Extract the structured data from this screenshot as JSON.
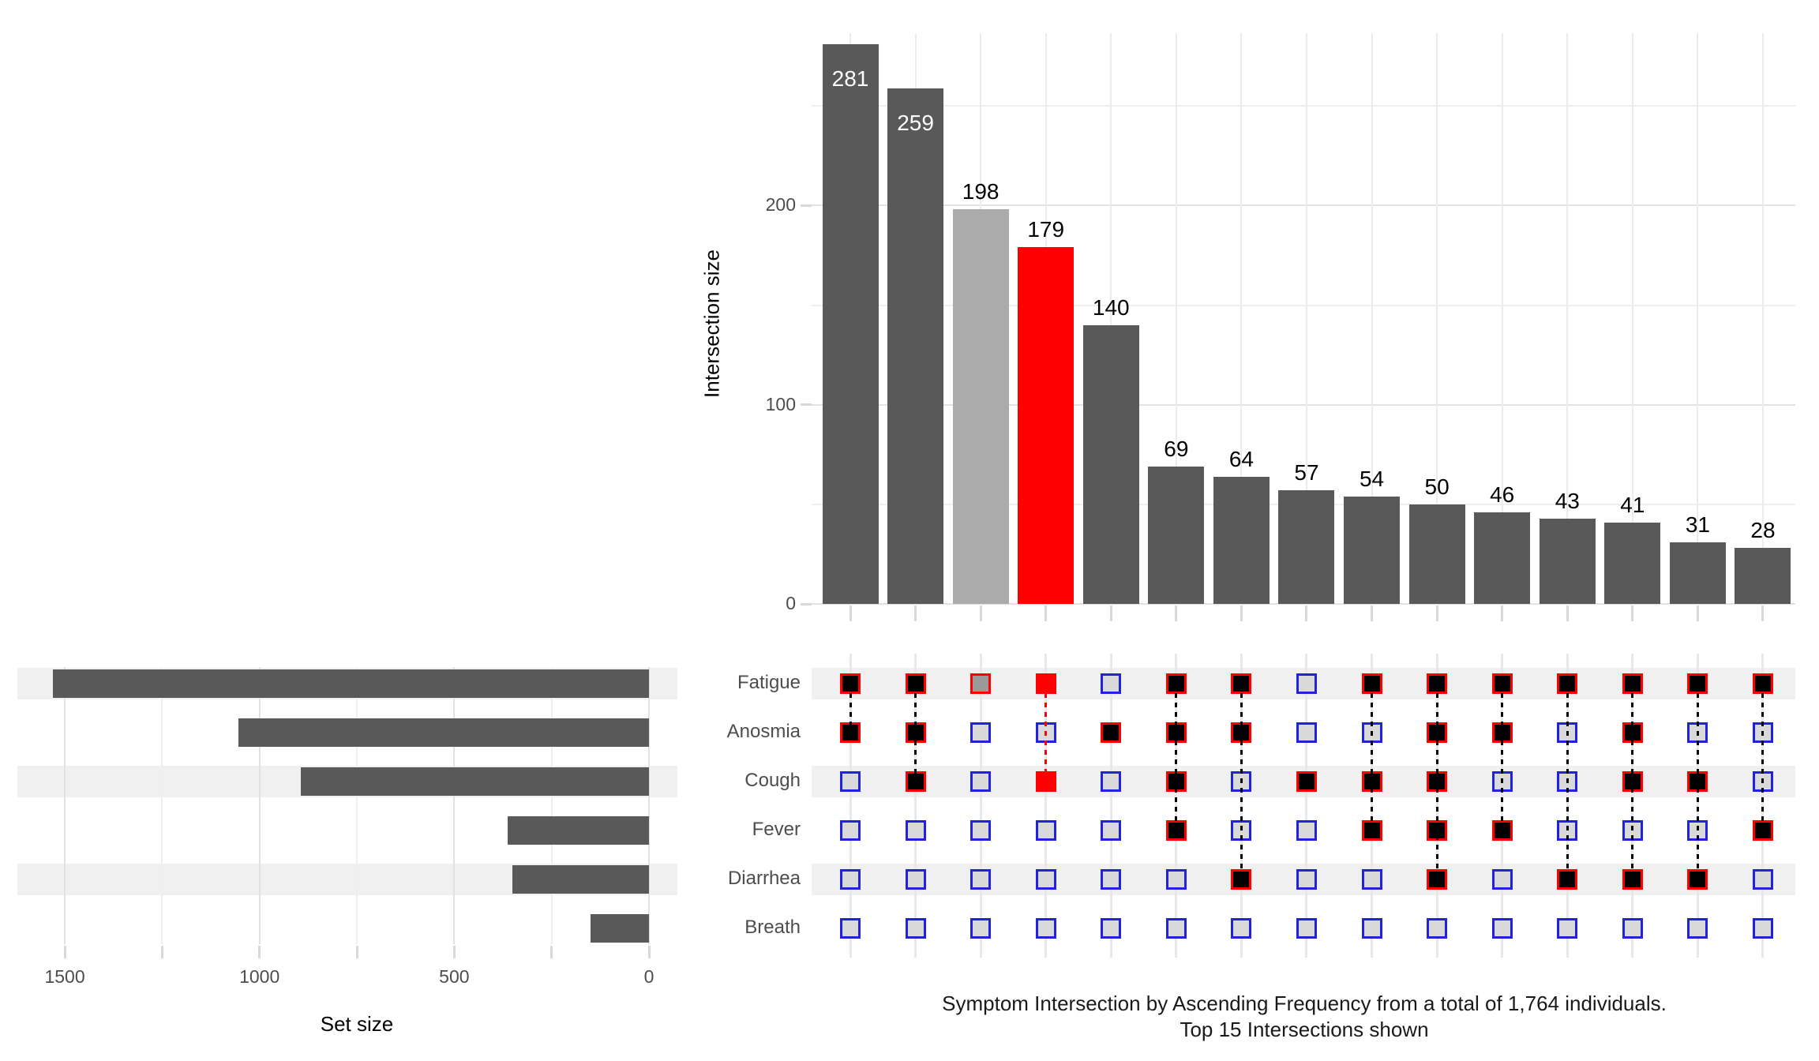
{
  "caption": {
    "line1": "Symptom Intersection by Ascending Frequency from a total of 1,764 individuals.",
    "line2": "Top 15 Intersections shown"
  },
  "colors": {
    "bar_dark": "#595959",
    "bar_grey": "#ababab",
    "bar_red": "#ff0000",
    "cell_inactive_fill": "#d9d9d9",
    "cell_inactive_border": "#2222dd",
    "cell_active_fill": "#000000",
    "cell_active_border": "#ff0000",
    "cell_grey_fill": "#9a9a9a",
    "stripe": "#f0f0f0",
    "grid_major": "#e2e2e2",
    "grid_minor": "#efefef",
    "grid_col": "#ececec",
    "rail": "#e8e8e8",
    "tick": "#d9d9d9",
    "axis_text": "#4d4d4d",
    "label_black": "#000000",
    "label_white": "#ffffff"
  },
  "chart_data": [
    {
      "id": "upset_intersections",
      "type": "bar",
      "ylabel": "Intersection size",
      "yticks": [
        0,
        100,
        200
      ],
      "yminor": [
        50,
        150,
        250
      ],
      "ylim": [
        0,
        290
      ],
      "grid": "on",
      "legend": "none",
      "matrix_rows": [
        "Fatigue",
        "Anosmia",
        "Cough",
        "Fever",
        "Diarrhea",
        "Breath"
      ],
      "bars": [
        {
          "size": 281,
          "sets": [
            "Fatigue",
            "Anosmia"
          ],
          "style": "dark",
          "label_inside": true
        },
        {
          "size": 259,
          "sets": [
            "Fatigue",
            "Anosmia",
            "Cough"
          ],
          "style": "dark",
          "label_inside": true
        },
        {
          "size": 198,
          "sets": [
            "Fatigue"
          ],
          "style": "grey",
          "label_inside": false
        },
        {
          "size": 179,
          "sets": [
            "Fatigue",
            "Cough"
          ],
          "style": "red",
          "label_inside": false
        },
        {
          "size": 140,
          "sets": [
            "Anosmia"
          ],
          "style": "dark",
          "label_inside": false
        },
        {
          "size": 69,
          "sets": [
            "Fatigue",
            "Anosmia",
            "Cough",
            "Fever"
          ],
          "style": "dark",
          "label_inside": false
        },
        {
          "size": 64,
          "sets": [
            "Fatigue",
            "Anosmia",
            "Diarrhea"
          ],
          "style": "dark",
          "label_inside": false
        },
        {
          "size": 57,
          "sets": [
            "Cough"
          ],
          "style": "dark",
          "label_inside": false
        },
        {
          "size": 54,
          "sets": [
            "Fatigue",
            "Cough",
            "Fever"
          ],
          "style": "dark",
          "label_inside": false
        },
        {
          "size": 50,
          "sets": [
            "Fatigue",
            "Anosmia",
            "Cough",
            "Fever",
            "Diarrhea"
          ],
          "style": "dark",
          "label_inside": false
        },
        {
          "size": 46,
          "sets": [
            "Fatigue",
            "Anosmia",
            "Fever"
          ],
          "style": "dark",
          "label_inside": false
        },
        {
          "size": 43,
          "sets": [
            "Fatigue",
            "Diarrhea"
          ],
          "style": "dark",
          "label_inside": false
        },
        {
          "size": 41,
          "sets": [
            "Fatigue",
            "Anosmia",
            "Cough",
            "Diarrhea"
          ],
          "style": "dark",
          "label_inside": false
        },
        {
          "size": 31,
          "sets": [
            "Fatigue",
            "Cough",
            "Diarrhea"
          ],
          "style": "dark",
          "label_inside": false
        },
        {
          "size": 28,
          "sets": [
            "Fatigue",
            "Fever"
          ],
          "style": "dark",
          "label_inside": false
        }
      ]
    },
    {
      "id": "set_sizes",
      "type": "bar",
      "orientation": "horizontal",
      "xlabel": "Set size",
      "xticks": [
        1500,
        1000,
        500,
        0
      ],
      "xminor": [
        1250,
        750,
        250
      ],
      "xlim": [
        1620,
        0
      ],
      "grid": "on",
      "categories": [
        "Fatigue",
        "Anosmia",
        "Cough",
        "Fever",
        "Diarrhea",
        "Breath"
      ],
      "values": [
        1530,
        1054,
        894,
        363,
        351,
        150
      ]
    }
  ]
}
